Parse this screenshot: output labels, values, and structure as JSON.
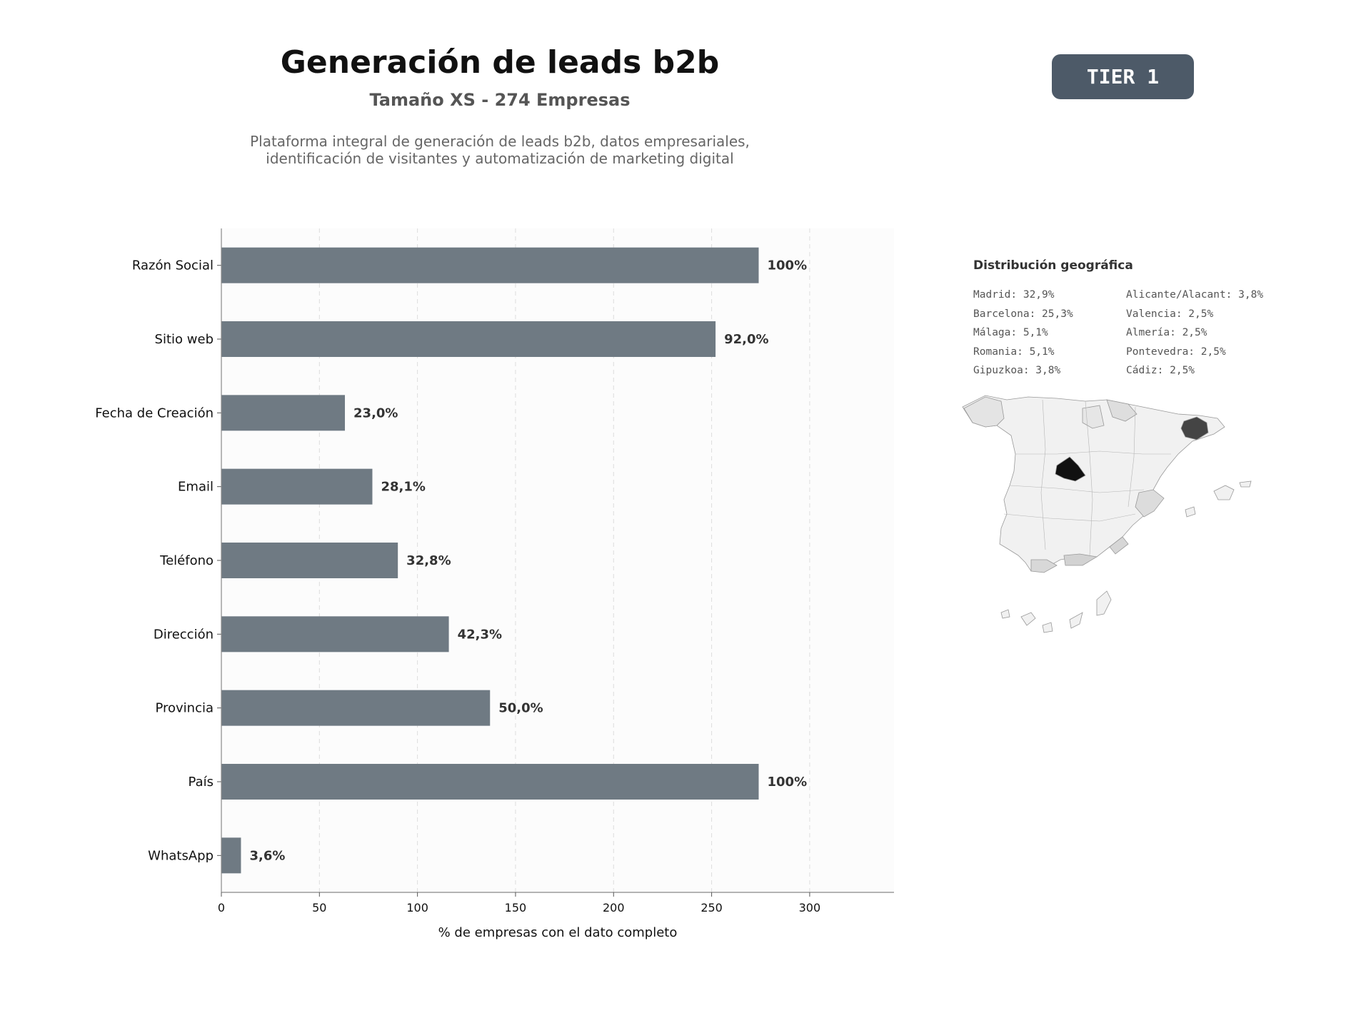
{
  "header": {
    "title": "Generación de leads b2b",
    "subtitle": "Tamaño XS - 274 Empresas",
    "description_line1": "Plataforma integral de generación de leads b2b, datos empresariales,",
    "description_line2": "identificación de visitantes y automatización de marketing digital",
    "badge": "TIER 1"
  },
  "colors": {
    "bar": "#6f7a83",
    "badge": "#4d5a68",
    "map_madrid": "#111111",
    "map_barcelona": "#444444",
    "map_default": "#f1f1f1"
  },
  "chart_data": {
    "type": "bar",
    "orientation": "horizontal",
    "categories": [
      "Razón Social",
      "Sitio web",
      "Fecha de Creación",
      "Email",
      "Teléfono",
      "Dirección",
      "Provincia",
      "País",
      "WhatsApp"
    ],
    "values": [
      274,
      252,
      63,
      77,
      90,
      116,
      137,
      274,
      10
    ],
    "data_labels": [
      "100%",
      "92,0%",
      "23,0%",
      "28,1%",
      "32,8%",
      "42,3%",
      "50,0%",
      "100%",
      "3,6%"
    ],
    "xlabel": "% de empresas con el dato completo",
    "ylabel": "",
    "xlim": [
      0,
      343
    ],
    "xticks": [
      0,
      50,
      100,
      150,
      200,
      250,
      300
    ],
    "grid": "vertical dashed"
  },
  "geo": {
    "title": "Distribución geográfica",
    "col1": [
      "Madrid: 32,9%",
      "Barcelona: 25,3%",
      "Málaga: 5,1%",
      "Romania: 5,1%",
      "Gipuzkoa: 3,8%"
    ],
    "col2": [
      "Alicante/Alacant: 3,8%",
      "Valencia: 2,5%",
      "Almería: 2,5%",
      "Pontevedra: 2,5%",
      "Cádiz: 2,5%"
    ]
  }
}
